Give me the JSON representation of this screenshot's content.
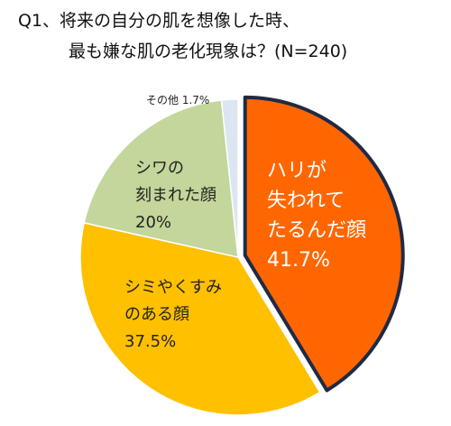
{
  "title_lines": [
    "Q1、将来の自分の肌を想像した時、",
    "最も嫌な肌の老化現象は？(N=240)"
  ],
  "chart_data": {
    "type": "pie",
    "title": "Q1、将来の自分の肌を想像した時、最も嫌な肌の老化現象は？(N=240)",
    "start_angle_deg": 0,
    "direction": "clockwise",
    "slices": [
      {
        "label": "ハリが失われてたるんだ顔",
        "label_lines": [
          "ハリが",
          "失われて",
          "たるんだ顔"
        ],
        "value": 41.7,
        "value_label": "41.7%",
        "color": "#FF6600",
        "text_color": "#FFFFFF",
        "exploded": true,
        "outline": "#1F2A44"
      },
      {
        "label": "シミやくすみのある顔",
        "label_lines": [
          "シミやくすみ",
          "のある顔"
        ],
        "value": 37.5,
        "value_label": "37.5%",
        "color": "#FFC000",
        "text_color": "#222222",
        "exploded": false
      },
      {
        "label": "シワの刻まれた顔",
        "label_lines": [
          "シワの",
          "刻まれた顔"
        ],
        "value": 20,
        "value_label": "20%",
        "color": "#C3D69B",
        "text_color": "#222222",
        "exploded": false
      },
      {
        "label": "その他",
        "label_lines": [
          "その他"
        ],
        "value": 1.7,
        "value_label": "1.7%",
        "color": "#DCE6F2",
        "text_color": "#222222",
        "exploded": false,
        "outside_label": true
      }
    ]
  }
}
